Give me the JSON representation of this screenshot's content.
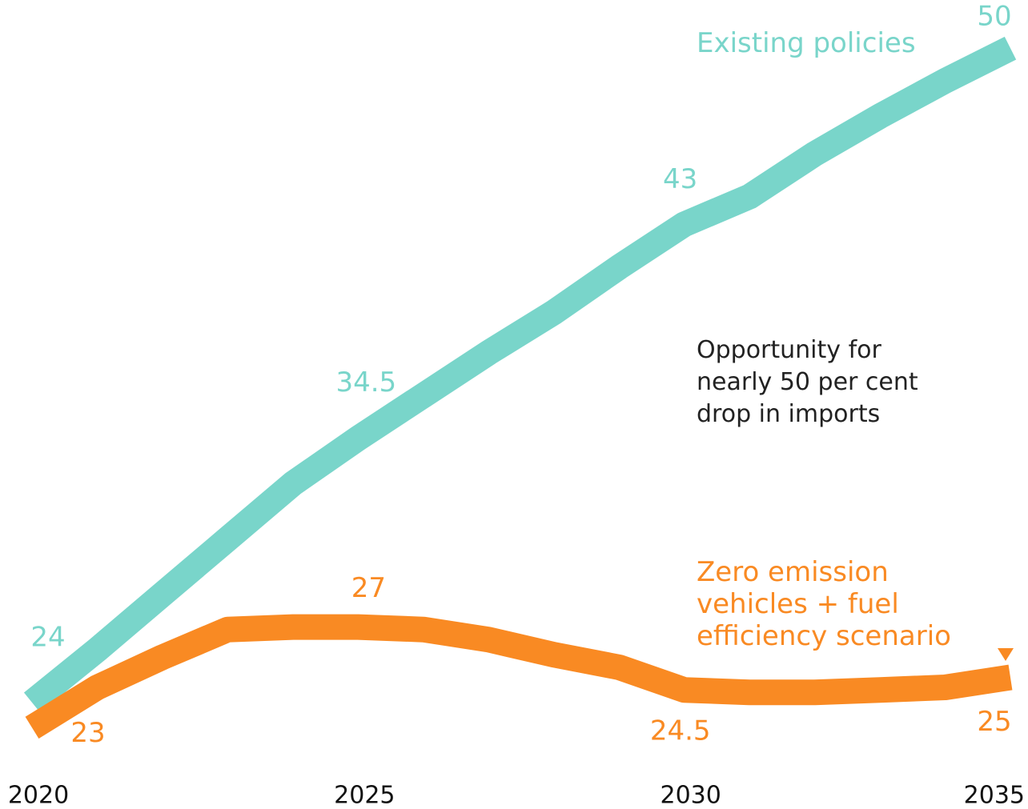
{
  "chart_data": {
    "type": "line",
    "x": [
      2020,
      2021,
      2022,
      2023,
      2024,
      2025,
      2026,
      2027,
      2028,
      2029,
      2030,
      2031,
      2032,
      2033,
      2034,
      2035
    ],
    "xlim": [
      2020,
      2035
    ],
    "xticks": [
      2020,
      2025,
      2030,
      2035
    ],
    "ylim": [
      20.5,
      51.5
    ],
    "series": [
      {
        "name": "Existing policies",
        "color": "#79d5ca",
        "values": [
          24,
          26.1,
          28.3,
          30.5,
          32.7,
          34.5,
          36.2,
          37.9,
          39.5,
          41.3,
          43,
          44.1,
          45.8,
          47.3,
          48.7,
          50
        ],
        "value_labels": [
          "24",
          null,
          null,
          null,
          null,
          "34.5",
          null,
          null,
          null,
          null,
          "43",
          null,
          null,
          null,
          null,
          "50"
        ]
      },
      {
        "name": "Zero emission vehicles + fuel efficiency scenario",
        "color": "#f98a23",
        "values": [
          23,
          24.6,
          25.8,
          26.9,
          27,
          27,
          26.9,
          26.5,
          25.9,
          25.4,
          24.5,
          24.4,
          24.4,
          24.5,
          24.6,
          25
        ],
        "value_labels": [
          "23",
          null,
          null,
          null,
          null,
          "27",
          null,
          null,
          null,
          null,
          "24.5",
          null,
          null,
          null,
          null,
          "25"
        ]
      }
    ],
    "annotations": [
      "Opportunity for nearly 50 per cent drop in imports"
    ]
  }
}
